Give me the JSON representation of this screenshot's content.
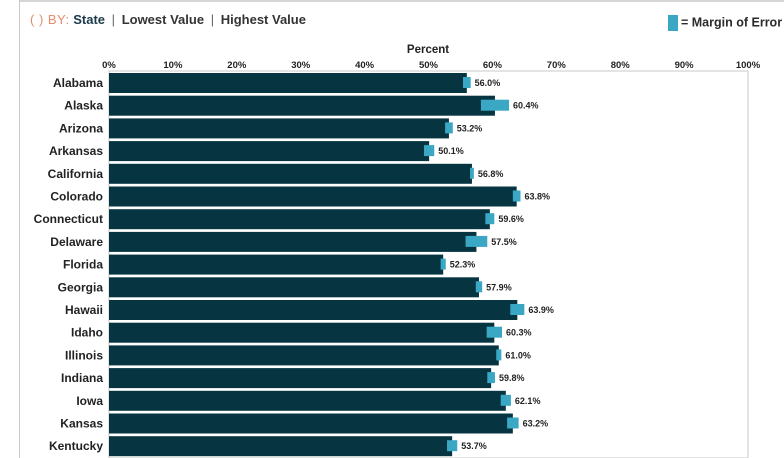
{
  "sort": {
    "prefix": "( ) BY:",
    "active": "State",
    "separator": "|",
    "option_lowest": "Lowest Value",
    "option_highest": "Highest Value"
  },
  "legend": {
    "label": "= Margin of Error",
    "swatch_color": "#3aa7c4"
  },
  "colors": {
    "bar": "#063541",
    "moe": "#3aa7c4",
    "frame": "#c9c9c9"
  },
  "chart_data": {
    "type": "bar",
    "orientation": "horizontal",
    "xlabel": "Percent",
    "xlim": [
      0,
      100
    ],
    "ticks": [
      "0%",
      "10%",
      "20%",
      "30%",
      "40%",
      "50%",
      "60%",
      "70%",
      "80%",
      "90%",
      "100%"
    ],
    "grid": false,
    "categories": [
      "Alabama",
      "Alaska",
      "Arizona",
      "Arkansas",
      "California",
      "Colorado",
      "Connecticut",
      "Delaware",
      "Florida",
      "Georgia",
      "Hawaii",
      "Idaho",
      "Illinois",
      "Indiana",
      "Iowa",
      "Kansas",
      "Kentucky"
    ],
    "values": [
      56.0,
      60.4,
      53.2,
      50.1,
      56.8,
      63.8,
      59.6,
      57.5,
      52.3,
      57.9,
      63.9,
      60.3,
      61.0,
      59.8,
      62.1,
      63.2,
      53.7
    ],
    "value_labels": [
      "56.0%",
      "60.4%",
      "53.2%",
      "50.1%",
      "56.8%",
      "63.8%",
      "59.6%",
      "57.5%",
      "52.3%",
      "57.9%",
      "63.9%",
      "60.3%",
      "61.0%",
      "59.8%",
      "62.1%",
      "63.2%",
      "53.7%"
    ],
    "margin_of_error": [
      0.6,
      2.2,
      0.6,
      0.8,
      0.3,
      0.6,
      0.7,
      1.7,
      0.4,
      0.5,
      1.1,
      1.2,
      0.4,
      0.6,
      0.8,
      0.9,
      0.8
    ]
  }
}
